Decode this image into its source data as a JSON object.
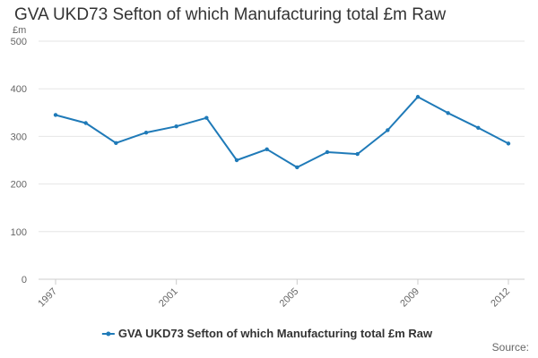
{
  "chart_data": {
    "type": "line",
    "title": "GVA UKD73 Sefton of which Manufacturing total £m Raw",
    "unit_label": "£m",
    "ylim": [
      0,
      500
    ],
    "yticks": [
      0,
      100,
      200,
      300,
      400,
      500
    ],
    "xlim": [
      1997,
      2012
    ],
    "xticks": [
      1997,
      2001,
      2005,
      2009,
      2012
    ],
    "grid": true,
    "legend_position": "bottom",
    "series": [
      {
        "name": "GVA UKD73 Sefton of which Manufacturing total £m Raw",
        "color": "#1f7ab8",
        "x": [
          1997,
          1998,
          1999,
          2000,
          2001,
          2002,
          2003,
          2004,
          2005,
          2006,
          2007,
          2008,
          2009,
          2010,
          2011,
          2012
        ],
        "values": [
          345,
          328,
          286,
          308,
          321,
          339,
          250,
          273,
          235,
          267,
          263,
          313,
          383,
          349,
          318,
          285
        ]
      }
    ]
  },
  "footer": {
    "source": "Source:"
  }
}
